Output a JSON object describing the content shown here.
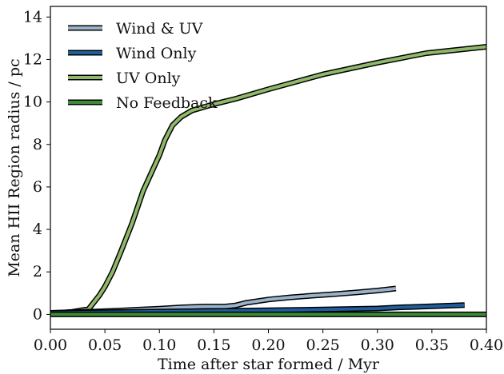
{
  "chart_data": {
    "type": "line",
    "xlabel": "Time after star formed / Myr",
    "ylabel": "Mean HII Region radius / pc",
    "xlim": [
      0.0,
      0.4
    ],
    "ylim": [
      -0.7,
      14.5
    ],
    "x_ticks": [
      "0.00",
      "0.05",
      "0.10",
      "0.15",
      "0.20",
      "0.25",
      "0.30",
      "0.35",
      "0.40"
    ],
    "x_tick_values": [
      0.0,
      0.05,
      0.1,
      0.15,
      0.2,
      0.25,
      0.3,
      0.35,
      0.4
    ],
    "y_ticks": [
      "0",
      "2",
      "4",
      "6",
      "8",
      "10",
      "12",
      "14"
    ],
    "y_tick_values": [
      0,
      2,
      4,
      6,
      8,
      10,
      12,
      14
    ],
    "grid": false,
    "legend_position": "top-left",
    "series": [
      {
        "name": "Wind & UV",
        "color": "#9ab3c8",
        "x": [
          0.0,
          0.02,
          0.04,
          0.06,
          0.08,
          0.1,
          0.12,
          0.14,
          0.16,
          0.17,
          0.18,
          0.2,
          0.22,
          0.24,
          0.26,
          0.28,
          0.3,
          0.317
        ],
        "y": [
          0.07,
          0.1,
          0.13,
          0.17,
          0.22,
          0.27,
          0.33,
          0.37,
          0.37,
          0.42,
          0.55,
          0.7,
          0.8,
          0.88,
          0.95,
          1.03,
          1.12,
          1.22
        ]
      },
      {
        "name": "Wind Only",
        "color": "#1f5e9c",
        "x": [
          0.0,
          0.05,
          0.1,
          0.15,
          0.2,
          0.25,
          0.3,
          0.32,
          0.34,
          0.36,
          0.38
        ],
        "y": [
          0.07,
          0.1,
          0.13,
          0.16,
          0.19,
          0.23,
          0.28,
          0.33,
          0.36,
          0.4,
          0.44
        ]
      },
      {
        "name": "UV Only",
        "color": "#8fb86a",
        "x": [
          0.0,
          0.01,
          0.02,
          0.035,
          0.045,
          0.05,
          0.057,
          0.065,
          0.075,
          0.085,
          0.1,
          0.105,
          0.112,
          0.12,
          0.13,
          0.14,
          0.15,
          0.17,
          0.2,
          0.25,
          0.3,
          0.345,
          0.4
        ],
        "y": [
          0.05,
          0.08,
          0.12,
          0.25,
          0.9,
          1.3,
          2.0,
          3.0,
          4.3,
          5.8,
          7.5,
          8.2,
          8.9,
          9.3,
          9.6,
          9.75,
          9.9,
          10.15,
          10.6,
          11.3,
          11.85,
          12.3,
          12.6
        ]
      },
      {
        "name": "No Feedback",
        "color": "#3d8a37",
        "x": [
          0.0,
          0.4
        ],
        "y": [
          0.0,
          0.0
        ]
      }
    ]
  }
}
